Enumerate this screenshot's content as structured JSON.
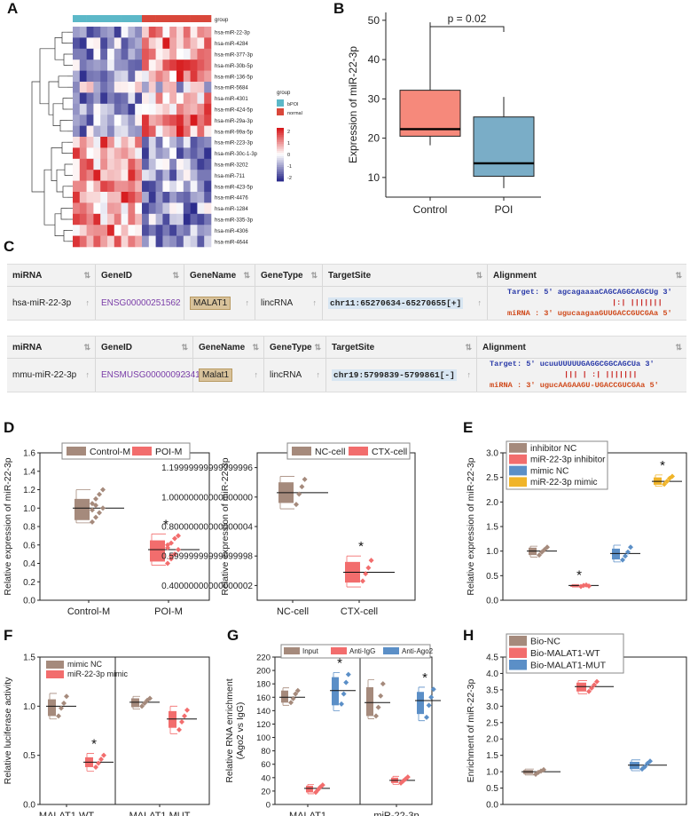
{
  "colors": {
    "heat_high": "#d7191c",
    "heat_low": "#2c2c8c",
    "group_bpoi": "#5cb8c8",
    "group_normal": "#d9473a",
    "brown": "#a58a7c",
    "pink": "#f26d6d",
    "blue": "#5b8fc7",
    "gold": "#f0b429"
  },
  "panel_letters": [
    "A",
    "B",
    "C",
    "D",
    "E",
    "F",
    "G",
    "H"
  ],
  "heatmap": {
    "top_label": "group",
    "genes": [
      "hsa-miR-22-3p",
      "hsa-miR-4284",
      "hsa-miR-377-3p",
      "hsa-miR-30b-5p",
      "hsa-miR-136-5p",
      "hsa-miR-5684",
      "hsa-miR-4301",
      "hsa-miR-424-5p",
      "hsa-miR-29a-3p",
      "hsa-miR-99a-5p",
      "hsa-miR-223-3p",
      "hsa-miR-30c-1-3p",
      "hsa-miR-3202",
      "hsa-miR-711",
      "hsa-miR-423-5p",
      "hsa-miR-4476",
      "hsa-miR-1284",
      "hsa-miR-335-3p",
      "hsa-miR-4306",
      "hsa-miR-4644"
    ],
    "legend_title": "group",
    "legend_items": [
      "bPOI",
      "normal"
    ],
    "scale_ticks": [
      "2",
      "1",
      "0",
      "-1",
      "-2"
    ]
  },
  "table": {
    "headers": [
      "miRNA",
      "GeneID",
      "GeneName",
      "GeneType",
      "TargetSite",
      "Alignment"
    ],
    "rows": [
      {
        "mirna": "hsa-miR-22-3p",
        "gene_id": "ENSG00000251562",
        "gene_name": "MALAT1",
        "gene_type": "lincRNA",
        "target_site": "chr11:65270634-65270655[+]",
        "aln_target": "Target: 5' agcagaaaaCAGCAGGCAGCUg 3'",
        "aln_bars": "|:|  |||||||",
        "aln_mirna": "miRNA : 3' ugucaagaaGUUGACCGUCGAa 5'"
      },
      {
        "mirna": "mmu-miR-22-3p",
        "gene_id": "ENSMUSG00000092341",
        "gene_name": "Malat1",
        "gene_type": "lincRNA",
        "target_site": "chr19:5799839-5799861[-]",
        "aln_target": "Target: 5' ucuuUUUUUGAGGCGGCAGCUa 3'",
        "aln_bars": "||| | :|  |||||||",
        "aln_mirna": "miRNA : 3' ugucAAGAAGU-UGACCGUCGAa 5'"
      }
    ]
  },
  "chart_data": [
    {
      "id": "B",
      "type": "box",
      "ylabel": "Expression of miR-22-3p",
      "ylim": [
        5,
        52
      ],
      "yticks": [
        10,
        20,
        30,
        40,
        50
      ],
      "categories": [
        "Control",
        "POI"
      ],
      "annotation": "p = 0.02",
      "boxes": [
        {
          "name": "Control",
          "q1": 20.5,
          "median": 22.3,
          "q3": 32.2,
          "whisker_low": 18.2,
          "whisker_high": 49.5,
          "color": "#f6897b"
        },
        {
          "name": "POI",
          "q1": 10.3,
          "median": 13.6,
          "q3": 25.4,
          "whisker_low": 7.3,
          "whisker_high": 30.5,
          "color": "#7aadc7"
        }
      ]
    },
    {
      "id": "D1",
      "type": "box",
      "ylabel": "Relative expression of miR-22-3p",
      "ylim": [
        0,
        1.6
      ],
      "yticks": [
        0.0,
        0.2,
        0.4,
        0.6,
        0.8,
        1.0,
        1.2,
        1.4,
        1.6
      ],
      "categories": [
        "Control-M",
        "POI-M"
      ],
      "legend": [
        "Control-M",
        "POI-M"
      ],
      "significance": [
        "",
        "*"
      ],
      "groups": [
        {
          "name": "Control-M",
          "mean": 1.0,
          "q1": 0.87,
          "q3": 1.1,
          "lo": 0.84,
          "hi": 1.2,
          "points": [
            0.85,
            0.9,
            0.95,
            1.0,
            1.05,
            1.1,
            1.15,
            1.2,
            0.98,
            1.03
          ],
          "color": "brown"
        },
        {
          "name": "POI-M",
          "mean": 0.55,
          "q1": 0.42,
          "q3": 0.65,
          "lo": 0.38,
          "hi": 0.72,
          "points": [
            0.4,
            0.45,
            0.5,
            0.55,
            0.6,
            0.62,
            0.67,
            0.7,
            0.57,
            0.48
          ],
          "color": "pink"
        }
      ]
    },
    {
      "id": "D2",
      "type": "box",
      "ylabel": "Relative expression of miR-22-3p",
      "ylim": [
        0.3,
        1.3
      ],
      "yticks": [
        0.4,
        0.6,
        0.8,
        1.0,
        1.2
      ],
      "categories": [
        "NC-cell",
        "CTX-cell"
      ],
      "legend": [
        "NC-cell",
        "CTX-cell"
      ],
      "significance": [
        "",
        "*"
      ],
      "groups": [
        {
          "name": "NC-cell",
          "mean": 1.03,
          "q1": 0.96,
          "q3": 1.1,
          "lo": 0.92,
          "hi": 1.14,
          "points": [
            0.95,
            1.02,
            1.07,
            1.12
          ],
          "color": "brown"
        },
        {
          "name": "CTX-cell",
          "mean": 0.49,
          "q1": 0.42,
          "q3": 0.56,
          "lo": 0.39,
          "hi": 0.6,
          "points": [
            0.43,
            0.48,
            0.52,
            0.57
          ],
          "color": "pink"
        }
      ]
    },
    {
      "id": "E",
      "type": "box",
      "ylabel": "Relative expression of miR-22-3p",
      "ylim": [
        0,
        3.0
      ],
      "yticks": [
        0.0,
        0.5,
        1.0,
        1.5,
        2.0,
        2.5,
        3.0
      ],
      "categories": [
        "",
        "",
        "",
        ""
      ],
      "legend": [
        "inhibitor NC",
        "miR-22-3p inhibitor",
        "mimic NC",
        "miR-22-3p mimic"
      ],
      "significance": [
        "",
        "*",
        "",
        "*"
      ],
      "groups": [
        {
          "name": "inhibitor NC",
          "mean": 1.0,
          "q1": 0.92,
          "q3": 1.07,
          "lo": 0.88,
          "hi": 1.1,
          "points": [
            0.92,
            0.98,
            1.03,
            1.08
          ],
          "color": "brown"
        },
        {
          "name": "miR-22-3p inhibitor",
          "mean": 0.3,
          "q1": 0.28,
          "q3": 0.31,
          "lo": 0.27,
          "hi": 0.32,
          "points": [
            0.28,
            0.3,
            0.31,
            0.29
          ],
          "color": "pink"
        },
        {
          "name": "mimic NC",
          "mean": 0.95,
          "q1": 0.83,
          "q3": 1.05,
          "lo": 0.78,
          "hi": 1.12,
          "points": [
            0.82,
            0.9,
            0.98,
            1.08
          ],
          "color": "blue"
        },
        {
          "name": "miR-22-3p mimic",
          "mean": 2.42,
          "q1": 2.35,
          "q3": 2.5,
          "lo": 2.32,
          "hi": 2.55,
          "points": [
            2.36,
            2.42,
            2.48,
            2.52
          ],
          "color": "gold"
        }
      ]
    },
    {
      "id": "F",
      "type": "box",
      "ylabel": "Relative luciferase activity",
      "ylim": [
        0,
        1.5
      ],
      "yticks": [
        0.0,
        0.5,
        1.0,
        1.5
      ],
      "categories": [
        "MALAT1 WT",
        "MALAT1 MUT"
      ],
      "legend": [
        "mimic NC",
        "miR-22-3p mimic"
      ],
      "significance": [
        "",
        "*",
        "",
        ""
      ],
      "groups": [
        {
          "name": "mimic NC",
          "cat": 0,
          "mean": 1.0,
          "q1": 0.9,
          "q3": 1.07,
          "lo": 0.87,
          "hi": 1.13,
          "points": [
            0.9,
            0.98,
            1.03,
            1.1
          ],
          "color": "brown"
        },
        {
          "name": "miR-22-3p mimic",
          "cat": 0,
          "mean": 0.43,
          "q1": 0.38,
          "q3": 0.48,
          "lo": 0.34,
          "hi": 0.52,
          "points": [
            0.38,
            0.42,
            0.46,
            0.5
          ],
          "color": "pink"
        },
        {
          "name": "mimic NC",
          "cat": 1,
          "mean": 1.04,
          "q1": 0.99,
          "q3": 1.08,
          "lo": 0.97,
          "hi": 1.1,
          "points": [
            1.0,
            1.03,
            1.06,
            1.08
          ],
          "color": "brown"
        },
        {
          "name": "miR-22-3p mimic",
          "cat": 1,
          "mean": 0.87,
          "q1": 0.78,
          "q3": 0.95,
          "lo": 0.72,
          "hi": 1.0,
          "points": [
            0.76,
            0.84,
            0.9,
            0.96
          ],
          "color": "pink"
        }
      ]
    },
    {
      "id": "G",
      "type": "box",
      "ylabel": "Relative RNA enrichment\n(Ago2 vs IgG)",
      "ylim": [
        0,
        220
      ],
      "yticks": [
        0,
        20,
        40,
        60,
        80,
        100,
        120,
        140,
        160,
        180,
        200,
        220
      ],
      "categories": [
        "MALAT1",
        "miR-22-3p"
      ],
      "legend": [
        "Input",
        "Anti-IgG",
        "Anti-Ago2"
      ],
      "significance": [
        "",
        "",
        "*",
        "",
        "",
        "*"
      ],
      "groups": [
        {
          "name": "Input",
          "cat": 0,
          "mean": 160,
          "q1": 152,
          "q3": 170,
          "lo": 148,
          "hi": 174,
          "points": [
            152,
            158,
            165,
            170
          ],
          "color": "brown"
        },
        {
          "name": "Anti-IgG",
          "cat": 0,
          "mean": 24,
          "q1": 18,
          "q3": 28,
          "lo": 16,
          "hi": 30,
          "points": [
            18,
            22,
            26,
            29
          ],
          "color": "pink"
        },
        {
          "name": "Anti-Ago2",
          "cat": 0,
          "mean": 170,
          "q1": 148,
          "q3": 190,
          "lo": 140,
          "hi": 197,
          "points": [
            150,
            165,
            182,
            194
          ],
          "color": "blue"
        },
        {
          "name": "Input",
          "cat": 1,
          "mean": 152,
          "q1": 132,
          "q3": 175,
          "lo": 128,
          "hi": 186,
          "points": [
            132,
            145,
            162,
            180
          ],
          "color": "brown"
        },
        {
          "name": "Anti-IgG",
          "cat": 1,
          "mean": 36,
          "q1": 32,
          "q3": 40,
          "lo": 30,
          "hi": 42,
          "points": [
            32,
            35,
            38,
            41
          ],
          "color": "pink"
        },
        {
          "name": "Anti-Ago2",
          "cat": 1,
          "mean": 155,
          "q1": 135,
          "q3": 168,
          "lo": 125,
          "hi": 175,
          "points": [
            130,
            148,
            160,
            172
          ],
          "color": "blue"
        }
      ]
    },
    {
      "id": "H",
      "type": "box",
      "ylabel": "Enrichment of miR-22-3p",
      "ylim": [
        0,
        4.5
      ],
      "yticks": [
        0.0,
        0.5,
        1.0,
        1.5,
        2.0,
        2.5,
        3.0,
        3.5,
        4.0,
        4.5
      ],
      "categories": [
        "",
        "",
        ""
      ],
      "legend": [
        "Bio-NC",
        "Bio-MALAT1-WT",
        "Bio-MALAT1-MUT"
      ],
      "significance": [
        "",
        "*",
        ""
      ],
      "groups": [
        {
          "name": "Bio-NC",
          "mean": 1.0,
          "q1": 0.93,
          "q3": 1.05,
          "lo": 0.9,
          "hi": 1.08,
          "points": [
            0.92,
            0.98,
            1.02,
            1.06
          ],
          "color": "brown"
        },
        {
          "name": "Bio-MALAT1-WT",
          "mean": 3.6,
          "q1": 3.45,
          "q3": 3.72,
          "lo": 3.38,
          "hi": 3.78,
          "points": [
            3.45,
            3.55,
            3.65,
            3.75
          ],
          "color": "pink"
        },
        {
          "name": "Bio-MALAT1-MUT",
          "mean": 1.2,
          "q1": 1.08,
          "q3": 1.3,
          "lo": 1.03,
          "hi": 1.36,
          "points": [
            1.08,
            1.15,
            1.25,
            1.32
          ],
          "color": "blue"
        }
      ]
    }
  ]
}
